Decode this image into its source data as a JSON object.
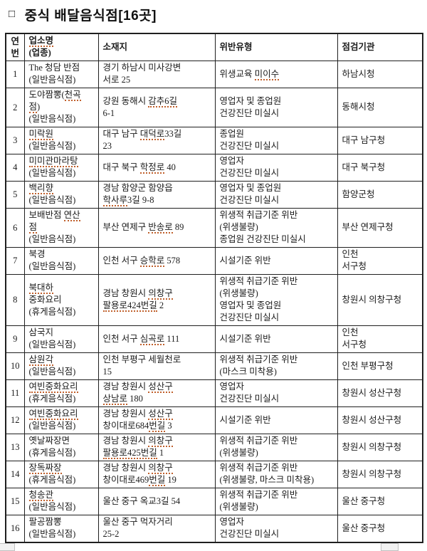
{
  "title": {
    "bullet": "□",
    "text": "중식 배달음식점[16곳]"
  },
  "colors": {
    "squiggle": "#c0602c",
    "border": "#1f1f1f",
    "text": "#1c1c1c"
  },
  "table": {
    "columns": [
      "연\n번",
      "«업소명»\n(업종)",
      "소재지",
      "위반유형",
      "점검기관"
    ],
    "rows": [
      {
        "no": "1",
        "name": "The 청담 반점\n(일반음식점)",
        "address": "경기 하남시 미사강변\n서로 25",
        "violation": "위생교육 «미이수»",
        "agency": "하남시청"
      },
      {
        "no": "2",
        "name": "도야짬뽕(«천곡»\n«점»)\n(일반음식점)",
        "address": "강원 동해시 «감추6길»\n6-1",
        "violation": "영업자 및 종업원\n건강진단 미실시",
        "agency": "동해시청"
      },
      {
        "no": "3",
        "name": "«미락원»\n(일반음식점)",
        "address": "대구 남구 «대덕로»33길\n23",
        "violation": "종업원\n건강진단 미실시",
        "agency": "대구 남구청"
      },
      {
        "no": "4",
        "name": "«미미관마라탕»\n(일반음식점)",
        "address": "대구 북구 «학정로» 40",
        "violation": "영업자\n건강진단 미실시",
        "agency": "대구 북구청"
      },
      {
        "no": "5",
        "name": "«백리향»\n(일반음식점)",
        "address": "경남 함양군 함양읍\n«학사루»3길 9-8",
        "violation": "영업자 및 종업원\n건강진단 미실시",
        "agency": "함양군청"
      },
      {
        "no": "6",
        "name": "보배반점 «연산»\n«점»\n(일반음식점)",
        "address": "부산 연제구 «반송로» 89",
        "violation": "위생적 취급기준 위반\n(위생불량)\n종업원 건강진단 미실시",
        "agency": "부산 연제구청"
      },
      {
        "no": "7",
        "name": "북경\n(일반음식점)",
        "address": "인천 서구 «승학로» 578",
        "violation": "시설기준 위반",
        "agency": "인천\n서구청"
      },
      {
        "no": "8",
        "name": "«북대하»\n중화요리\n(휴게음식점)",
        "address": "경남 창원시 «의창구»\n«팔용로424번길» 2",
        "violation": "위생적 취급기준 위반\n(위생불량)\n영업자 및 종업원\n건강진단 미실시",
        "agency": "창원시 의창구청"
      },
      {
        "no": "9",
        "name": "삼국지\n(일반음식점)",
        "address": "인천 서구 «심곡로» 111",
        "violation": "시설기준 위반",
        "agency": "인천\n서구청"
      },
      {
        "no": "10",
        "name": "«삼원각»\n(일반음식점)",
        "address": "인천 부평구 세월천로\n15",
        "violation": "위생적 취급기준 위반\n(마스크 미착용)",
        "agency": "인천 부평구청"
      },
      {
        "no": "11",
        "name": "«여빈중화요리»\n(휴게음식점)",
        "address": "경남 창원시 «성산구»\n«상남로» 180",
        "violation": "영업자\n건강진단 미실시",
        "agency": "창원시 성산구청"
      },
      {
        "no": "12",
        "name": "«여빈중화요리»\n(일반음식점)",
        "address": "경남 창원시 «성산구»\n창이대로684«번길» 3",
        "violation": "시설기준 위반",
        "agency": "창원시 성산구청"
      },
      {
        "no": "13",
        "name": "옛날짜장면\n(휴게음식점)",
        "address": "경남 창원시 «의창구»\n«팔용로425번길» 1",
        "violation": "위생적 취급기준 위반\n(위생불량)",
        "agency": "창원시 의창구청"
      },
      {
        "no": "14",
        "name": "«장독짜장»\n(휴게음식점)",
        "address": "경남 창원시 «의창구»\n창이대로469«번길» 19",
        "violation": "위생적 취급기준 위반\n(위생불량, 마스크 미착용)",
        "agency": "창원시 의창구청"
      },
      {
        "no": "15",
        "name": "«청송관»\n(일반음식점)",
        "address": "울산 중구 옥교3길 54",
        "violation": "위생적 취급기준 위반\n(위생불량)",
        "agency": "울산 중구청"
      },
      {
        "no": "16",
        "name": "팔공짬뽕\n(일반음식점)",
        "address": "울산 중구 먹자거리\n25-2",
        "violation": "영업자\n건강진단 미실시",
        "agency": "울산 중구청"
      }
    ]
  }
}
